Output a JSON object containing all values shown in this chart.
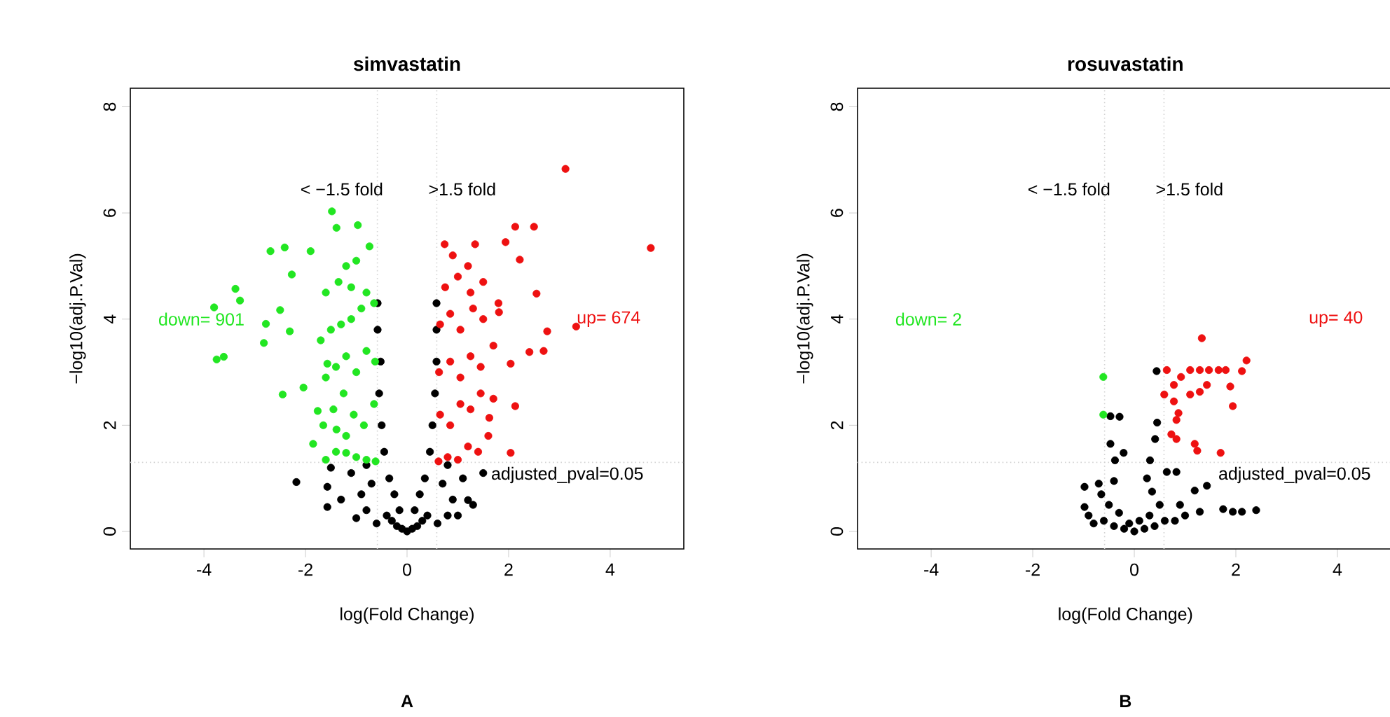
{
  "chart_data": [
    {
      "type": "scatter",
      "title": "simvastatin",
      "xlabel": "log(Fold Change)",
      "ylabel": "−log10(adj.P.Val)",
      "xlim": [
        -5.45,
        5.45
      ],
      "ylim": [
        -0.33,
        8.35
      ],
      "xticks": [
        -4,
        -2,
        0,
        2,
        4
      ],
      "yticks": [
        0,
        2,
        4,
        6,
        8
      ],
      "marker": "circle",
      "series": [
        {
          "color": "#000000",
          "x": [
            0,
            -0.1,
            0.1,
            -0.2,
            0.2,
            -0.3,
            0.3,
            -0.4,
            0.4,
            -0.15,
            0.15,
            -0.25,
            0.25,
            -0.35,
            0.35,
            -0.45,
            0.45,
            -0.5,
            0.5,
            -0.55,
            0.55,
            -0.52,
            0.58,
            -0.58,
            0.58,
            -0.58,
            0.58,
            -0.7,
            0.7,
            -0.9,
            0.9,
            -1.1,
            1.1,
            -1.3,
            1.3,
            -1.5,
            1.5,
            -0.8,
            0.8,
            -0.6,
            0.6,
            -1.0,
            1.0,
            -2.18,
            -1.57,
            -1.57,
            1.2,
            -0.8,
            0.8
          ],
          "values": [
            0,
            0.05,
            0.05,
            0.1,
            0.1,
            0.2,
            0.2,
            0.3,
            0.3,
            0.4,
            0.4,
            0.7,
            0.7,
            1.0,
            1.0,
            1.5,
            1.5,
            2.0,
            2.0,
            2.6,
            2.6,
            3.2,
            3.2,
            3.8,
            3.8,
            4.3,
            4.3,
            0.9,
            0.9,
            0.7,
            0.6,
            1.1,
            1.0,
            0.6,
            0.5,
            1.2,
            1.1,
            0.4,
            0.3,
            0.15,
            0.15,
            0.25,
            0.3,
            0.93,
            0.46,
            0.84,
            0.59,
            1.25,
            1.25
          ]
        },
        {
          "name": "down= 901",
          "color": "#22e622",
          "x": [
            -1.6,
            -1.4,
            -1.2,
            -1.0,
            -0.8,
            -0.62,
            -1.65,
            -1.45,
            -1.25,
            -1.05,
            -0.85,
            -0.65,
            -1.6,
            -1.4,
            -1.2,
            -1.0,
            -0.8,
            -0.63,
            -1.7,
            -1.5,
            -1.3,
            -1.1,
            -0.9,
            -0.65,
            -1.6,
            -1.35,
            -1.1,
            -0.8,
            -1.2,
            -1.0,
            -1.48,
            -1.39,
            -0.97,
            -2.69,
            -2.41,
            -1.9,
            -0.74,
            -3.38,
            -3.8,
            -3.29,
            -3.75,
            -3.61,
            -2.27,
            -2.5,
            -2.82,
            -2.78,
            -2.45,
            -1.85,
            -2.04,
            -2.31,
            -1.57,
            -1.76,
            -1.39,
            -1.2
          ],
          "values": [
            1.35,
            1.5,
            1.8,
            1.4,
            1.35,
            1.32,
            2.0,
            2.3,
            2.6,
            2.2,
            2.0,
            2.4,
            2.9,
            3.1,
            3.3,
            3.0,
            3.4,
            3.2,
            3.6,
            3.8,
            3.9,
            4.0,
            4.2,
            4.3,
            4.5,
            4.7,
            4.6,
            4.5,
            5.0,
            5.1,
            6.03,
            5.72,
            5.77,
            5.28,
            5.35,
            5.28,
            5.37,
            4.57,
            4.22,
            4.35,
            3.24,
            3.29,
            4.84,
            4.17,
            3.55,
            3.91,
            2.58,
            1.65,
            2.71,
            3.77,
            3.16,
            2.27,
            1.92,
            1.48
          ]
        },
        {
          "name": "up= 674",
          "color": "#ee1111",
          "x": [
            0.62,
            0.8,
            1.0,
            1.2,
            1.4,
            1.6,
            0.65,
            0.85,
            1.05,
            1.25,
            1.45,
            1.7,
            0.63,
            0.85,
            1.05,
            1.25,
            1.45,
            1.7,
            0.65,
            0.85,
            1.05,
            1.3,
            1.5,
            1.8,
            0.75,
            1.0,
            1.25,
            1.5,
            0.9,
            1.2,
            3.12,
            4.8,
            2.5,
            2.13,
            1.94,
            1.34,
            0.74,
            2.22,
            2.55,
            2.76,
            2.69,
            2.41,
            2.04,
            2.13,
            1.62,
            2.04,
            3.33,
            1.81
          ],
          "values": [
            1.32,
            1.4,
            1.35,
            1.6,
            1.5,
            1.8,
            2.2,
            2.0,
            2.4,
            2.3,
            2.6,
            2.5,
            3.0,
            3.2,
            2.9,
            3.3,
            3.1,
            3.5,
            3.9,
            4.1,
            3.8,
            4.2,
            4.0,
            4.3,
            4.6,
            4.8,
            4.5,
            4.7,
            5.2,
            5.0,
            6.83,
            5.34,
            5.74,
            5.74,
            5.45,
            5.41,
            5.41,
            5.12,
            4.48,
            3.77,
            3.4,
            3.38,
            3.16,
            2.36,
            2.14,
            1.48,
            3.86,
            4.13
          ]
        }
      ],
      "ref_lines": [
        {
          "axis": "x",
          "value": -0.585,
          "label": "< −1.5 fold",
          "color": "#d3d3d3",
          "line_style": "dotted"
        },
        {
          "axis": "x",
          "value": 0.585,
          "label": ">1.5 fold",
          "color": "#d3d3d3",
          "line_style": "dotted"
        },
        {
          "axis": "y",
          "value": 1.30103,
          "color": "#d3d3d3",
          "line_style": "dotted"
        }
      ],
      "annotations": [
        "adjusted_pval=0.05",
        "A"
      ]
    },
    {
      "type": "scatter",
      "title": "rosuvastatin",
      "xlabel": "log(Fold Change)",
      "ylabel": "−log10(adj.P.Val)",
      "xlim": [
        -5.45,
        5.1
      ],
      "ylim": [
        -0.33,
        8.35
      ],
      "xticks": [
        -4,
        -2,
        0,
        2,
        4
      ],
      "yticks": [
        0,
        2,
        4,
        6,
        8
      ],
      "marker": "circle",
      "series": [
        {
          "color": "#000000",
          "x": [
            0.44,
            -0.47,
            -0.29,
            0.45,
            0.41,
            -0.47,
            -0.21,
            -0.38,
            0.31,
            0.64,
            0.83,
            1.43,
            1.19,
            -0.98,
            -0.7,
            -0.98,
            1.94,
            2.12,
            2.4,
            1.75,
            1.29,
            0,
            -0.2,
            0.2,
            -0.4,
            0.4,
            -0.6,
            0.6,
            -0.8,
            0.8,
            -0.3,
            0.3,
            -0.5,
            0.5,
            -0.65,
            0.35,
            -0.4,
            0.25,
            1.0,
            -0.9,
            0.9,
            -0.1,
            0.1
          ],
          "values": [
            3.02,
            2.17,
            2.16,
            2.05,
            1.74,
            1.65,
            1.48,
            1.34,
            1.34,
            1.12,
            1.12,
            0.86,
            0.77,
            0.84,
            0.9,
            0.46,
            0.37,
            0.37,
            0.4,
            0.42,
            0.37,
            0,
            0.05,
            0.05,
            0.1,
            0.1,
            0.2,
            0.2,
            0.15,
            0.2,
            0.35,
            0.3,
            0.5,
            0.5,
            0.7,
            0.75,
            0.95,
            1.0,
            0.3,
            0.3,
            0.5,
            0.15,
            0.2
          ]
        },
        {
          "name": "down= 2",
          "color": "#22e622",
          "x": [
            -0.61,
            -0.61
          ],
          "values": [
            2.91,
            2.2
          ]
        },
        {
          "name": "up= 40",
          "color": "#ee1111",
          "x": [
            1.33,
            0.64,
            1.1,
            1.29,
            1.47,
            1.66,
            1.8,
            2.21,
            2.12,
            0.92,
            0.78,
            0.59,
            1.1,
            1.29,
            1.43,
            1.89,
            1.94,
            0.78,
            0.87,
            0.83,
            0.73,
            0.83,
            1.19,
            1.24,
            1.7
          ],
          "values": [
            3.64,
            3.04,
            3.04,
            3.04,
            3.04,
            3.04,
            3.04,
            3.22,
            3.02,
            2.91,
            2.76,
            2.58,
            2.58,
            2.63,
            2.76,
            2.73,
            2.36,
            2.45,
            2.23,
            2.1,
            1.83,
            1.74,
            1.65,
            1.52,
            1.48
          ]
        }
      ],
      "ref_lines": [
        {
          "axis": "x",
          "value": -0.585,
          "label": "< −1.5 fold",
          "color": "#d3d3d3",
          "line_style": "dotted"
        },
        {
          "axis": "x",
          "value": 0.585,
          "label": ">1.5 fold",
          "color": "#d3d3d3",
          "line_style": "dotted"
        },
        {
          "axis": "y",
          "value": 1.30103,
          "color": "#d3d3d3",
          "line_style": "dotted"
        }
      ],
      "annotations": [
        "adjusted_pval=0.05",
        "B"
      ]
    }
  ]
}
